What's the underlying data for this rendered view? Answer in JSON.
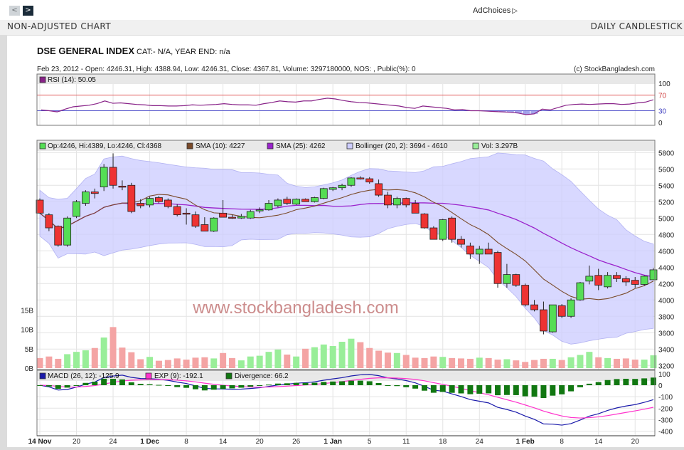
{
  "nav": {
    "prev_glyph": "<",
    "next_glyph": ">"
  },
  "ad": {
    "label": "AdChoices",
    "icon": "adchoices-triangle"
  },
  "header": {
    "left": "NON-ADJUSTED CHART",
    "right": "DAILY CANDLESTICK"
  },
  "chart_data": {
    "type": "candlestick",
    "title": "DSE GENERAL INDEX",
    "meta": "CAT:- N/A, YEAR END: n/a",
    "info": "Feb 23, 2012 - Open: 4246.31, High: 4388.94, Low: 4246.31, Close: 4367.81, Volume: 3297180000, NOS: , Public(%): 0",
    "copyright": "(c) StockBangladesh.com",
    "watermark": "www.stockbangladesh.com",
    "colors": {
      "up": "#55dd55",
      "down": "#ee3333",
      "sma10": "#7a4a2a",
      "sma25": "#9a22cc",
      "bollinger": "#ccccff",
      "volume_up": "#99ee99",
      "volume_down": "#f4a4a4",
      "macd": "#1a1aaa",
      "exp": "#ff33cc",
      "divergence": "#117711",
      "rsi": "#882288"
    },
    "x_labels": [
      {
        "i": 0,
        "label": "14 Nov",
        "bold": true
      },
      {
        "i": 4,
        "label": "20"
      },
      {
        "i": 8,
        "label": "24"
      },
      {
        "i": 12,
        "label": "1 Dec",
        "bold": true
      },
      {
        "i": 16,
        "label": "8"
      },
      {
        "i": 20,
        "label": "14"
      },
      {
        "i": 24,
        "label": "20"
      },
      {
        "i": 28,
        "label": "26"
      },
      {
        "i": 32,
        "label": "1 Jan",
        "bold": true
      },
      {
        "i": 36,
        "label": "5"
      },
      {
        "i": 40,
        "label": "11"
      },
      {
        "i": 44,
        "label": "18"
      },
      {
        "i": 48,
        "label": "24"
      },
      {
        "i": 53,
        "label": "1 Feb",
        "bold": true
      },
      {
        "i": 57,
        "label": "8"
      },
      {
        "i": 61,
        "label": "14"
      },
      {
        "i": 65,
        "label": "20"
      }
    ],
    "price_panel": {
      "legend": [
        "Op:4246, Hi:4389, Lo:4246, Cl:4368",
        "SMA (10): 4227",
        "SMA (25): 4262",
        "Bollinger (20, 2): 3694 - 4610",
        "Vol: 3.297B"
      ],
      "y_ticks": [
        3200,
        3400,
        3600,
        3800,
        4000,
        4200,
        4400,
        4600,
        4800,
        5000,
        5200,
        5400,
        5600,
        5800
      ],
      "ylim": [
        3150,
        5950
      ]
    },
    "rsi_panel": {
      "legend": "RSI (14): 50.05",
      "y_ticks": [
        0,
        30,
        70,
        100
      ],
      "overbought": 70,
      "oversold": 30,
      "values": [
        32,
        30,
        27,
        34,
        40,
        42,
        44,
        48,
        55,
        49,
        50,
        48,
        46,
        45,
        43,
        43,
        42,
        42,
        43,
        45,
        44,
        45,
        46,
        48,
        46,
        45,
        45,
        44,
        48,
        51,
        55,
        53,
        52,
        55,
        55,
        59,
        62,
        60,
        56,
        53,
        51,
        50,
        48,
        46,
        44,
        42,
        38,
        36,
        42,
        40,
        38,
        36,
        32,
        33,
        30,
        30,
        29,
        28,
        27,
        26,
        24,
        20,
        22,
        34,
        32,
        38,
        44,
        46,
        47,
        46,
        47,
        48,
        48,
        46,
        47,
        50,
        52,
        58
      ]
    },
    "volume_panel": {
      "y_ticks": [
        "0B",
        "5B",
        "10B",
        "15B"
      ],
      "ylim_billions": [
        0,
        16
      ]
    },
    "macd_panel": {
      "legend": [
        "MACD (26, 12): -125.9",
        "EXP (9): -192.1",
        "Divergence: 66.2"
      ],
      "y_ticks": [
        100,
        0,
        -100,
        -200,
        -300,
        -400
      ],
      "ylim": [
        -440,
        130
      ]
    },
    "candles": [
      {
        "o": 5220,
        "h": 5240,
        "l": 5060,
        "c": 5060,
        "v": 2.6
      },
      {
        "o": 5040,
        "h": 5060,
        "l": 4840,
        "c": 4880,
        "v": 3.0
      },
      {
        "o": 4900,
        "h": 4910,
        "l": 4650,
        "c": 4670,
        "v": 2.4
      },
      {
        "o": 4670,
        "h": 5020,
        "l": 4650,
        "c": 5000,
        "v": 3.6
      },
      {
        "o": 5020,
        "h": 5220,
        "l": 5000,
        "c": 5200,
        "v": 4.2
      },
      {
        "o": 5180,
        "h": 5340,
        "l": 5150,
        "c": 5320,
        "v": 4.6
      },
      {
        "o": 5320,
        "h": 5360,
        "l": 5240,
        "c": 5300,
        "v": 5.2
      },
      {
        "o": 5380,
        "h": 5660,
        "l": 5330,
        "c": 5620,
        "v": 7.9
      },
      {
        "o": 5620,
        "h": 5790,
        "l": 5360,
        "c": 5400,
        "v": 10.6
      },
      {
        "o": 5390,
        "h": 5460,
        "l": 5340,
        "c": 5380,
        "v": 5.3
      },
      {
        "o": 5400,
        "h": 5430,
        "l": 5060,
        "c": 5080,
        "v": 4.1
      },
      {
        "o": 5180,
        "h": 5230,
        "l": 5120,
        "c": 5150,
        "v": 2.3
      },
      {
        "o": 5160,
        "h": 5260,
        "l": 5130,
        "c": 5240,
        "v": 2.9
      },
      {
        "o": 5250,
        "h": 5270,
        "l": 5180,
        "c": 5200,
        "v": 1.9
      },
      {
        "o": 5220,
        "h": 5240,
        "l": 5120,
        "c": 5140,
        "v": 2.1
      },
      {
        "o": 5140,
        "h": 5170,
        "l": 5020,
        "c": 5040,
        "v": 2.5
      },
      {
        "o": 5060,
        "h": 5120,
        "l": 4920,
        "c": 5050,
        "v": 2.2
      },
      {
        "o": 5040,
        "h": 5080,
        "l": 4880,
        "c": 4900,
        "v": 2.7
      },
      {
        "o": 4920,
        "h": 5010,
        "l": 4860,
        "c": 4840,
        "v": 2.8
      },
      {
        "o": 4840,
        "h": 5010,
        "l": 4830,
        "c": 5000,
        "v": 2.5
      },
      {
        "o": 5060,
        "h": 5220,
        "l": 5010,
        "c": 5010,
        "v": 3.9
      },
      {
        "o": 5010,
        "h": 5040,
        "l": 4990,
        "c": 5000,
        "v": 2.6
      },
      {
        "o": 5000,
        "h": 5050,
        "l": 4990,
        "c": 5020,
        "v": 2.0
      },
      {
        "o": 5000,
        "h": 5100,
        "l": 4990,
        "c": 5080,
        "v": 3.0
      },
      {
        "o": 5090,
        "h": 5130,
        "l": 5060,
        "c": 5100,
        "v": 3.2
      },
      {
        "o": 5100,
        "h": 5220,
        "l": 5090,
        "c": 5180,
        "v": 4.2
      },
      {
        "o": 5150,
        "h": 5240,
        "l": 5130,
        "c": 5220,
        "v": 4.8
      },
      {
        "o": 5230,
        "h": 5260,
        "l": 5160,
        "c": 5180,
        "v": 3.5
      },
      {
        "o": 5170,
        "h": 5240,
        "l": 5160,
        "c": 5230,
        "v": 3.0
      },
      {
        "o": 5230,
        "h": 5240,
        "l": 5200,
        "c": 5200,
        "v": 5.0
      },
      {
        "o": 5200,
        "h": 5260,
        "l": 5190,
        "c": 5250,
        "v": 5.4
      },
      {
        "o": 5240,
        "h": 5370,
        "l": 5230,
        "c": 5360,
        "v": 6.1
      },
      {
        "o": 5350,
        "h": 5380,
        "l": 5330,
        "c": 5370,
        "v": 5.7
      },
      {
        "o": 5370,
        "h": 5420,
        "l": 5340,
        "c": 5400,
        "v": 6.8
      },
      {
        "o": 5400,
        "h": 5500,
        "l": 5380,
        "c": 5490,
        "v": 7.6
      },
      {
        "o": 5490,
        "h": 5510,
        "l": 5470,
        "c": 5480,
        "v": 6.7
      },
      {
        "o": 5480,
        "h": 5500,
        "l": 5420,
        "c": 5440,
        "v": 5.2
      },
      {
        "o": 5420,
        "h": 5470,
        "l": 5260,
        "c": 5280,
        "v": 4.5
      },
      {
        "o": 5280,
        "h": 5320,
        "l": 5120,
        "c": 5160,
        "v": 4.0
      },
      {
        "o": 5160,
        "h": 5260,
        "l": 5120,
        "c": 5240,
        "v": 3.9
      },
      {
        "o": 5240,
        "h": 5250,
        "l": 5130,
        "c": 5160,
        "v": 3.4
      },
      {
        "o": 5180,
        "h": 5220,
        "l": 5060,
        "c": 5060,
        "v": 2.7
      },
      {
        "o": 5050,
        "h": 5060,
        "l": 4870,
        "c": 4880,
        "v": 2.6
      },
      {
        "o": 4880,
        "h": 4900,
        "l": 4760,
        "c": 4740,
        "v": 3.0
      },
      {
        "o": 4740,
        "h": 4990,
        "l": 4720,
        "c": 4980,
        "v": 2.9
      },
      {
        "o": 5000,
        "h": 5020,
        "l": 4700,
        "c": 4740,
        "v": 2.6
      },
      {
        "o": 4740,
        "h": 4780,
        "l": 4640,
        "c": 4680,
        "v": 2.5
      },
      {
        "o": 4660,
        "h": 4700,
        "l": 4500,
        "c": 4560,
        "v": 2.4
      },
      {
        "o": 4560,
        "h": 4660,
        "l": 4440,
        "c": 4620,
        "v": 2.7
      },
      {
        "o": 4620,
        "h": 4700,
        "l": 4560,
        "c": 4560,
        "v": 2.6
      },
      {
        "o": 4580,
        "h": 4600,
        "l": 4150,
        "c": 4200,
        "v": 2.2
      },
      {
        "o": 4200,
        "h": 4440,
        "l": 4150,
        "c": 4310,
        "v": 2.3
      },
      {
        "o": 4310,
        "h": 4320,
        "l": 4160,
        "c": 4180,
        "v": 2.0
      },
      {
        "o": 4180,
        "h": 4200,
        "l": 3920,
        "c": 3940,
        "v": 1.6
      },
      {
        "o": 3940,
        "h": 4000,
        "l": 3860,
        "c": 3880,
        "v": 2.1
      },
      {
        "o": 3880,
        "h": 3980,
        "l": 3580,
        "c": 3620,
        "v": 2.4
      },
      {
        "o": 3610,
        "h": 3920,
        "l": 3600,
        "c": 3940,
        "v": 2.4
      },
      {
        "o": 3930,
        "h": 3950,
        "l": 3780,
        "c": 3800,
        "v": 2.1
      },
      {
        "o": 3800,
        "h": 4020,
        "l": 3780,
        "c": 4000,
        "v": 2.8
      },
      {
        "o": 4000,
        "h": 4220,
        "l": 3990,
        "c": 4210,
        "v": 3.4
      },
      {
        "o": 4230,
        "h": 4420,
        "l": 4190,
        "c": 4290,
        "v": 4.2
      },
      {
        "o": 4300,
        "h": 4380,
        "l": 4120,
        "c": 4180,
        "v": 2.8
      },
      {
        "o": 4160,
        "h": 4340,
        "l": 4140,
        "c": 4300,
        "v": 2.6
      },
      {
        "o": 4300,
        "h": 4340,
        "l": 4220,
        "c": 4260,
        "v": 2.4
      },
      {
        "o": 4260,
        "h": 4290,
        "l": 4170,
        "c": 4220,
        "v": 2.5
      },
      {
        "o": 4240,
        "h": 4280,
        "l": 4150,
        "c": 4190,
        "v": 2.2
      },
      {
        "o": 4190,
        "h": 4300,
        "l": 4170,
        "c": 4290,
        "v": 2.2
      },
      {
        "o": 4246,
        "h": 4389,
        "l": 4246,
        "c": 4368,
        "v": 3.3
      }
    ]
  }
}
